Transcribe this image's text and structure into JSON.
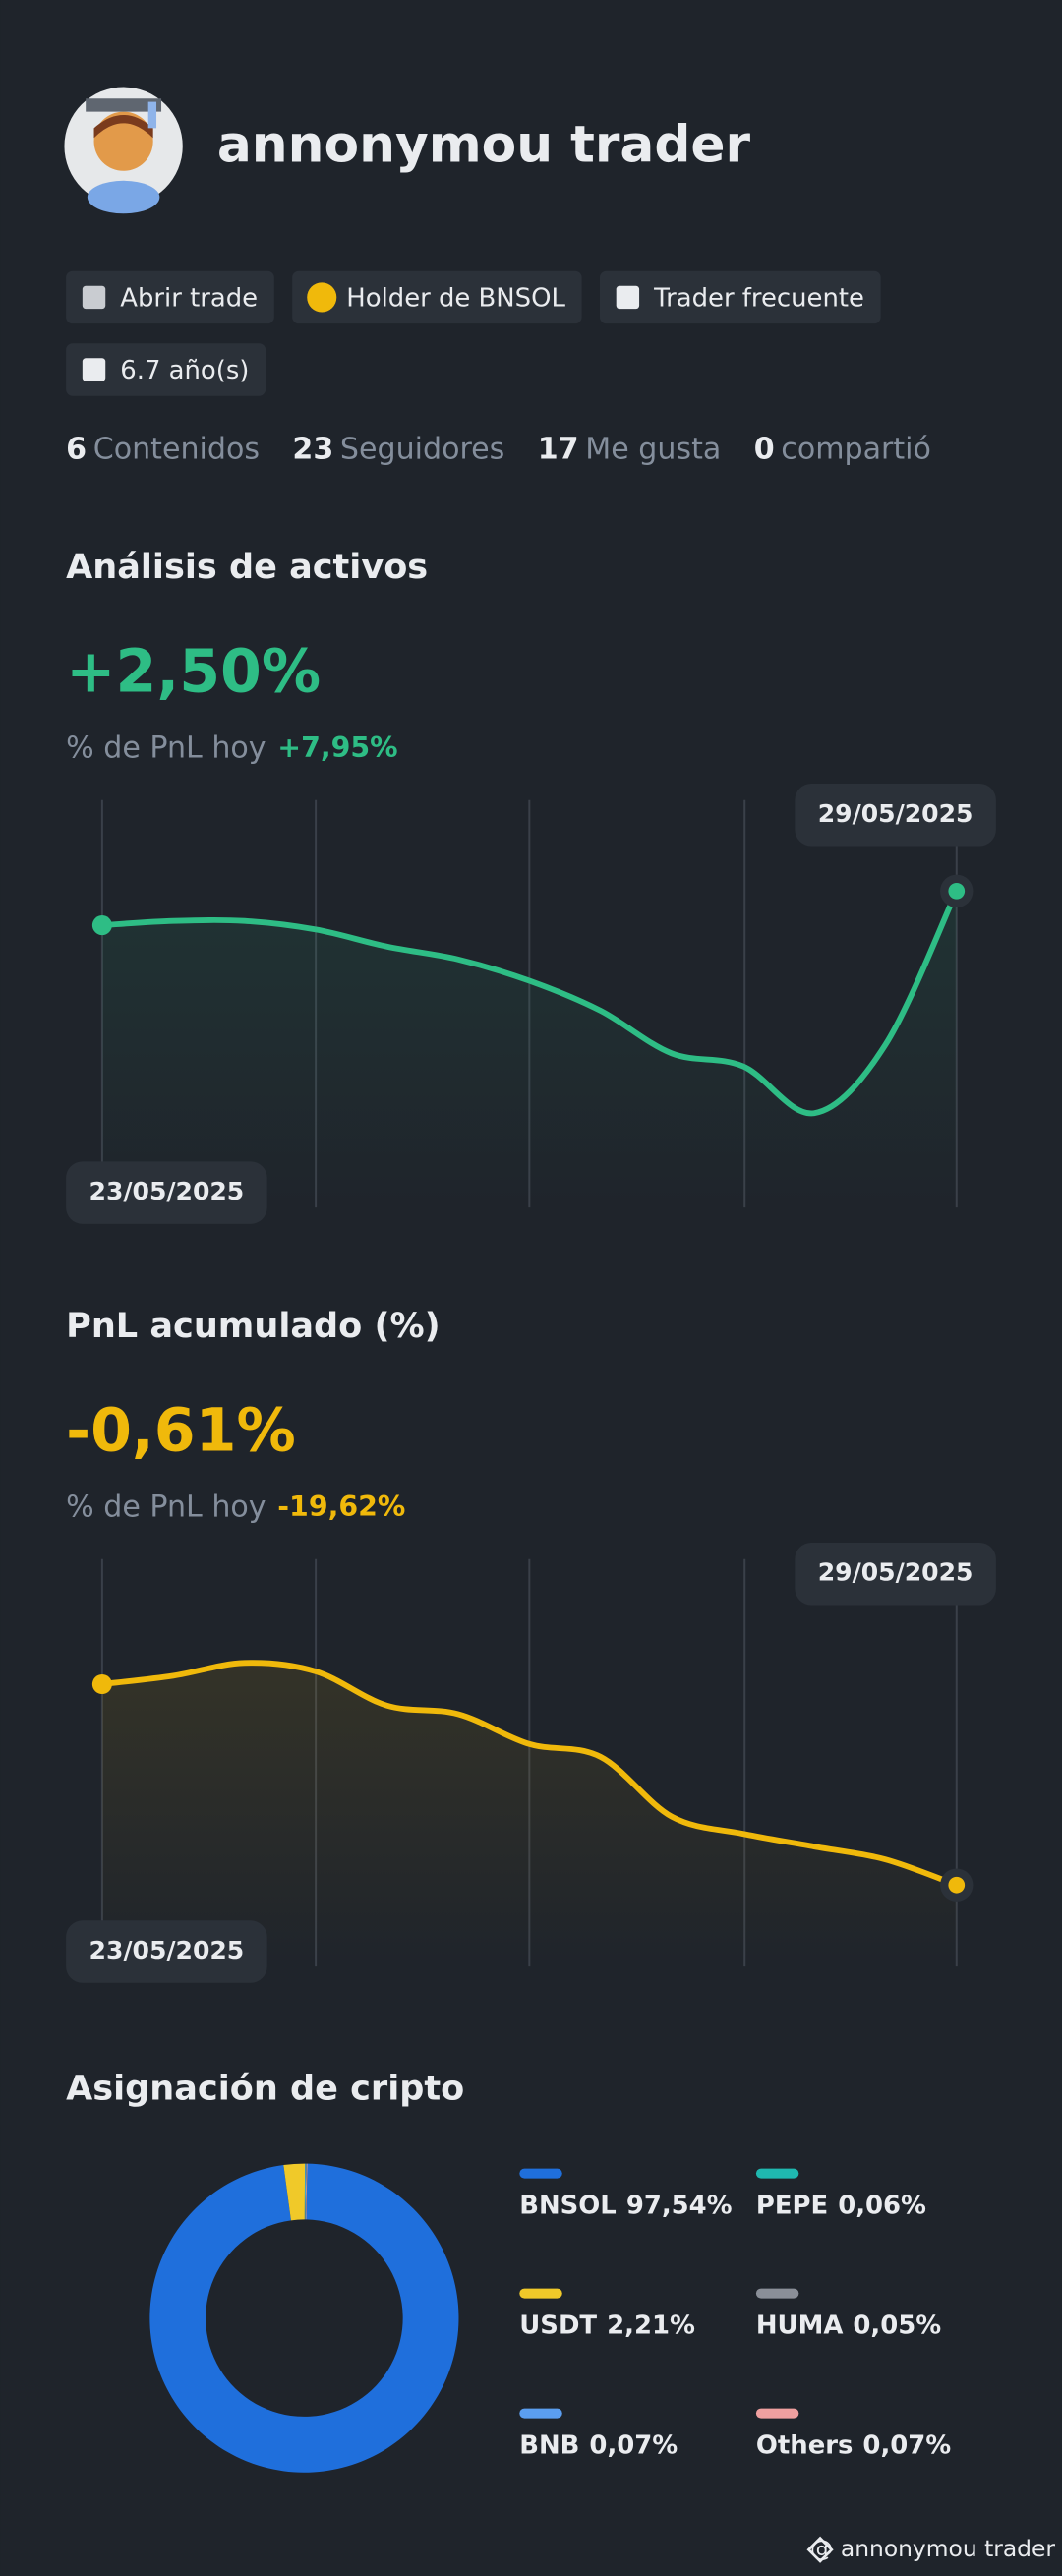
{
  "profile": {
    "name": "annonymou trader",
    "badges": [
      "Abrir trade",
      "Holder de BNSOL",
      "Trader frecuente",
      "6.7 año(s)"
    ],
    "stats": [
      {
        "value": "6",
        "label": "Contenidos"
      },
      {
        "value": "23",
        "label": "Seguidores"
      },
      {
        "value": "17",
        "label": "Me gusta"
      },
      {
        "value": "0",
        "label": "compartió"
      }
    ]
  },
  "charts": [
    {
      "type": "line",
      "title": "Análisis de activos",
      "headline": "+2,50%",
      "subtitle_label": "% de PnL hoy",
      "subtitle_value": "+7,95%",
      "color": "#2ebd85",
      "start_label": "23/05/2025",
      "end_label": "29/05/2025",
      "ylim": [
        0,
        100
      ],
      "values": [
        68,
        69,
        69,
        67,
        63,
        60,
        55,
        48,
        38,
        35,
        24,
        40,
        76
      ]
    },
    {
      "type": "line",
      "title": "PnL acumulado (%)",
      "headline": "-0,61%",
      "subtitle_label": "% de PnL hoy",
      "subtitle_value": "-19,62%",
      "color": "#f0b90b",
      "start_label": "23/05/2025",
      "end_label": "29/05/2025",
      "ylim": [
        0,
        100
      ],
      "values": [
        68,
        70,
        73,
        71,
        63,
        61,
        54,
        51,
        37,
        33,
        30,
        27,
        21
      ]
    }
  ],
  "allocation": {
    "type": "pie",
    "title": "Asignación de cripto",
    "categories": [
      "BNSOL",
      "USDT",
      "BNB",
      "PEPE",
      "HUMA",
      "Others"
    ],
    "values": [
      97.54,
      2.21,
      0.07,
      0.06,
      0.05,
      0.07
    ],
    "value_labels": [
      "97,54%",
      "2,21%",
      "0,07%",
      "0,06%",
      "0,05%",
      "0,07%"
    ],
    "colors": [
      "#1f6fdc",
      "#f0c929",
      "#5b9ef0",
      "#1fb8b0",
      "#8a8f98",
      "#f0a0a0"
    ]
  },
  "watermark": "@ annonymou trader"
}
